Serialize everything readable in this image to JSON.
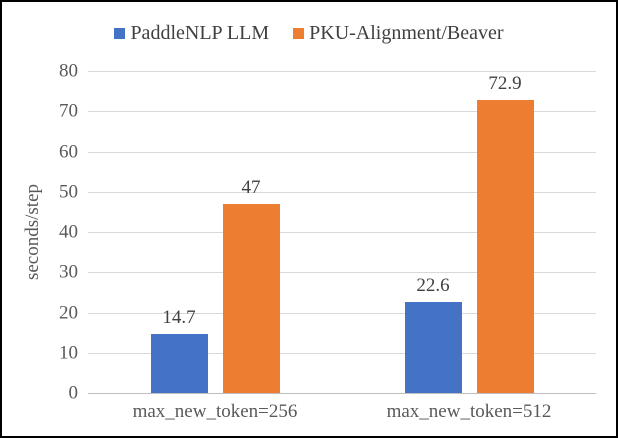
{
  "legend": {
    "items": [
      {
        "label": "PaddleNLP LLM",
        "color": "#4472C4"
      },
      {
        "label": "PKU-Alignment/Beaver",
        "color": "#ED7D31"
      }
    ]
  },
  "chart_data": {
    "type": "bar",
    "title": "",
    "categories": [
      "max_new_token=256",
      "max_new_token=512"
    ],
    "series": [
      {
        "name": "PaddleNLP LLM",
        "color": "#4472C4",
        "values": [
          14.7,
          22.6
        ]
      },
      {
        "name": "PKU-Alignment/Beaver",
        "color": "#ED7D31",
        "values": [
          47,
          72.9
        ]
      }
    ],
    "xlabel": "",
    "ylabel": "seconds/step",
    "ylim": [
      0,
      80
    ],
    "yticks": [
      80,
      70,
      60,
      50,
      40,
      30,
      20,
      10,
      0
    ],
    "grid": "horizontal",
    "legend_position": "top"
  },
  "colors": {
    "gridline": "#D9D9D9",
    "axis_line": "#BFBFBF",
    "tick_label": "#595959",
    "data_label": "#404040",
    "border": "#000000",
    "background": "#FFFFFF"
  }
}
